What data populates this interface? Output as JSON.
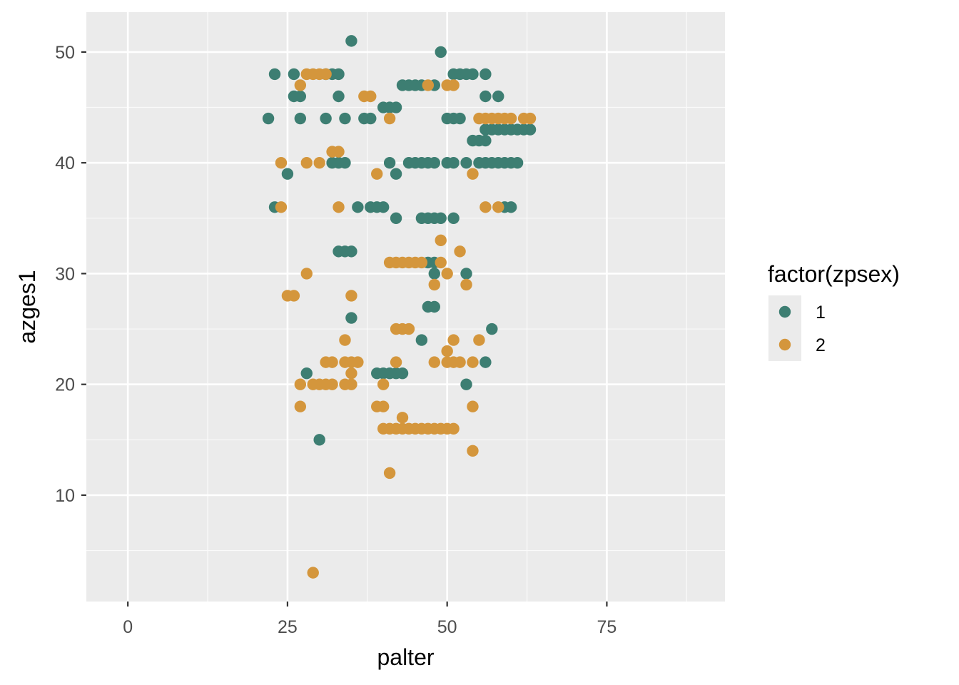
{
  "chart_data": {
    "type": "scatter",
    "xlabel": "palter",
    "ylabel": "azges1",
    "xlim": [
      -6.5,
      93.5
    ],
    "ylim": [
      0.4,
      53.6
    ],
    "x_ticks": [
      0,
      25,
      50,
      75
    ],
    "x_tick_labels": [
      "0",
      "25",
      "50",
      "75"
    ],
    "x_minor_ticks": [
      12.5,
      37.5,
      62.5,
      87.5
    ],
    "y_ticks": [
      10,
      20,
      30,
      40,
      50
    ],
    "y_tick_labels": [
      "10",
      "20",
      "30",
      "40",
      "50"
    ],
    "y_minor_ticks": [
      5,
      15,
      25,
      35,
      45
    ],
    "grid": true,
    "panel_background": "#ebebeb",
    "legend": {
      "title": "factor(zpsex)",
      "placement": "right",
      "entries": [
        "1",
        "2"
      ]
    },
    "series": [
      {
        "name": "1",
        "color": "#3d7e72",
        "points": [
          [
            35,
            51
          ],
          [
            49,
            50
          ],
          [
            23,
            48
          ],
          [
            26,
            48
          ],
          [
            31,
            48
          ],
          [
            32,
            48
          ],
          [
            33,
            48
          ],
          [
            51,
            48
          ],
          [
            52,
            48
          ],
          [
            53,
            48
          ],
          [
            54,
            48
          ],
          [
            56,
            48
          ],
          [
            43,
            47
          ],
          [
            44,
            47
          ],
          [
            45,
            47
          ],
          [
            46,
            47
          ],
          [
            48,
            47
          ],
          [
            26,
            46
          ],
          [
            27,
            46
          ],
          [
            33,
            46
          ],
          [
            56,
            46
          ],
          [
            58,
            46
          ],
          [
            40,
            45
          ],
          [
            41,
            45
          ],
          [
            42,
            45
          ],
          [
            22,
            44
          ],
          [
            27,
            44
          ],
          [
            31,
            44
          ],
          [
            34,
            44
          ],
          [
            37,
            44
          ],
          [
            38,
            44
          ],
          [
            50,
            44
          ],
          [
            51,
            44
          ],
          [
            52,
            44
          ],
          [
            56,
            43
          ],
          [
            57,
            43
          ],
          [
            58,
            43
          ],
          [
            59,
            43
          ],
          [
            60,
            43
          ],
          [
            61,
            43
          ],
          [
            62,
            43
          ],
          [
            63,
            43
          ],
          [
            54,
            42
          ],
          [
            55,
            42
          ],
          [
            56,
            42
          ],
          [
            32,
            40
          ],
          [
            33,
            40
          ],
          [
            34,
            40
          ],
          [
            41,
            40
          ],
          [
            44,
            40
          ],
          [
            45,
            40
          ],
          [
            46,
            40
          ],
          [
            47,
            40
          ],
          [
            48,
            40
          ],
          [
            50,
            40
          ],
          [
            51,
            40
          ],
          [
            53,
            40
          ],
          [
            55,
            40
          ],
          [
            56,
            40
          ],
          [
            57,
            40
          ],
          [
            58,
            40
          ],
          [
            59,
            40
          ],
          [
            60,
            40
          ],
          [
            61,
            40
          ],
          [
            25,
            39
          ],
          [
            42,
            39
          ],
          [
            23,
            36
          ],
          [
            36,
            36
          ],
          [
            38,
            36
          ],
          [
            39,
            36
          ],
          [
            40,
            36
          ],
          [
            59,
            36
          ],
          [
            60,
            36
          ],
          [
            42,
            35
          ],
          [
            46,
            35
          ],
          [
            47,
            35
          ],
          [
            48,
            35
          ],
          [
            49,
            35
          ],
          [
            51,
            35
          ],
          [
            33,
            32
          ],
          [
            34,
            32
          ],
          [
            35,
            32
          ],
          [
            47,
            31
          ],
          [
            48,
            31
          ],
          [
            48,
            30
          ],
          [
            53,
            30
          ],
          [
            47,
            27
          ],
          [
            48,
            27
          ],
          [
            35,
            26
          ],
          [
            57,
            25
          ],
          [
            46,
            24
          ],
          [
            56,
            22
          ],
          [
            28,
            21
          ],
          [
            39,
            21
          ],
          [
            40,
            21
          ],
          [
            41,
            21
          ],
          [
            42,
            21
          ],
          [
            43,
            21
          ],
          [
            53,
            20
          ],
          [
            30,
            15
          ]
        ]
      },
      {
        "name": "2",
        "color": "#d4963c",
        "points": [
          [
            28,
            48
          ],
          [
            29,
            48
          ],
          [
            30,
            48
          ],
          [
            31,
            48
          ],
          [
            27,
            47
          ],
          [
            47,
            47
          ],
          [
            50,
            47
          ],
          [
            51,
            47
          ],
          [
            37,
            46
          ],
          [
            38,
            46
          ],
          [
            55,
            44
          ],
          [
            56,
            44
          ],
          [
            57,
            44
          ],
          [
            58,
            44
          ],
          [
            59,
            44
          ],
          [
            60,
            44
          ],
          [
            62,
            44
          ],
          [
            63,
            44
          ],
          [
            41,
            44
          ],
          [
            32,
            41
          ],
          [
            33,
            41
          ],
          [
            24,
            40
          ],
          [
            28,
            40
          ],
          [
            30,
            40
          ],
          [
            39,
            39
          ],
          [
            54,
            39
          ],
          [
            24,
            36
          ],
          [
            33,
            36
          ],
          [
            56,
            36
          ],
          [
            58,
            36
          ],
          [
            49,
            33
          ],
          [
            52,
            32
          ],
          [
            41,
            31
          ],
          [
            42,
            31
          ],
          [
            43,
            31
          ],
          [
            44,
            31
          ],
          [
            45,
            31
          ],
          [
            46,
            31
          ],
          [
            49,
            31
          ],
          [
            28,
            30
          ],
          [
            50,
            30
          ],
          [
            48,
            29
          ],
          [
            53,
            29
          ],
          [
            25,
            28
          ],
          [
            26,
            28
          ],
          [
            35,
            28
          ],
          [
            42,
            25
          ],
          [
            43,
            25
          ],
          [
            44,
            25
          ],
          [
            34,
            24
          ],
          [
            51,
            24
          ],
          [
            55,
            24
          ],
          [
            50,
            23
          ],
          [
            31,
            22
          ],
          [
            32,
            22
          ],
          [
            34,
            22
          ],
          [
            35,
            22
          ],
          [
            36,
            22
          ],
          [
            42,
            22
          ],
          [
            48,
            22
          ],
          [
            50,
            22
          ],
          [
            51,
            22
          ],
          [
            52,
            22
          ],
          [
            54,
            22
          ],
          [
            35,
            21
          ],
          [
            27,
            20
          ],
          [
            29,
            20
          ],
          [
            30,
            20
          ],
          [
            31,
            20
          ],
          [
            32,
            20
          ],
          [
            34,
            20
          ],
          [
            35,
            20
          ],
          [
            40,
            20
          ],
          [
            27,
            18
          ],
          [
            39,
            18
          ],
          [
            40,
            18
          ],
          [
            54,
            18
          ],
          [
            43,
            17
          ],
          [
            40,
            16
          ],
          [
            41,
            16
          ],
          [
            42,
            16
          ],
          [
            43,
            16
          ],
          [
            44,
            16
          ],
          [
            45,
            16
          ],
          [
            46,
            16
          ],
          [
            47,
            16
          ],
          [
            48,
            16
          ],
          [
            49,
            16
          ],
          [
            50,
            16
          ],
          [
            51,
            16
          ],
          [
            54,
            14
          ],
          [
            41,
            12
          ],
          [
            29,
            3
          ]
        ]
      }
    ]
  }
}
